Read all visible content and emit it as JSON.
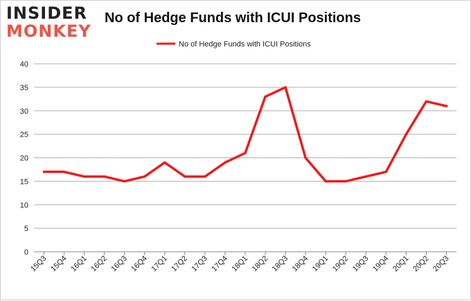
{
  "logo": {
    "line1": "INSIDER",
    "line2": "MONKEY"
  },
  "colors": {
    "series": "#ee1c1c",
    "grid": "#b0b0b0",
    "axis": "#888888",
    "logo_accent": "#e8564a"
  },
  "chart_data": {
    "type": "line",
    "title": "No of Hedge Funds with ICUI Positions",
    "xlabel": "",
    "ylabel": "",
    "categories": [
      "15Q3",
      "15Q4",
      "16Q1",
      "16Q2",
      "16Q3",
      "16Q4",
      "17Q1",
      "17Q2",
      "17Q3",
      "17Q4",
      "18Q1",
      "18Q2",
      "18Q3",
      "18Q4",
      "19Q1",
      "19Q2",
      "19Q3",
      "19Q4",
      "20Q1",
      "20Q2",
      "20Q3"
    ],
    "series": [
      {
        "name": "No of Hedge Funds with ICUI Positions",
        "values": [
          17,
          17,
          16,
          16,
          15,
          16,
          19,
          16,
          16,
          19,
          21,
          33,
          35,
          20,
          15,
          15,
          16,
          17,
          25,
          32,
          31
        ]
      }
    ],
    "ylim": [
      0,
      40
    ],
    "yticks": [
      0,
      5,
      10,
      15,
      20,
      25,
      30,
      35,
      40
    ],
    "grid": true,
    "legend": "top-center"
  }
}
